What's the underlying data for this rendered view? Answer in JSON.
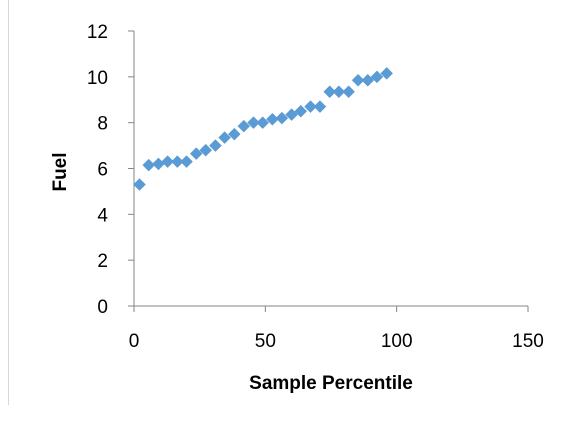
{
  "chart_data": {
    "type": "scatter",
    "title": "",
    "xlabel": "Sample Percentile",
    "ylabel": "Fuel",
    "xlim": [
      0,
      150
    ],
    "ylim": [
      0,
      12
    ],
    "xticks": [
      "0",
      "50",
      "100",
      "150"
    ],
    "yticks": [
      "0",
      "2",
      "4",
      "6",
      "8",
      "10",
      "12"
    ],
    "grid": false,
    "legend": "none",
    "marker": "diamond",
    "color": "#5B9BD5",
    "points": [
      {
        "x": 2.1,
        "y": 5.3
      },
      {
        "x": 5.6,
        "y": 6.15
      },
      {
        "x": 9.3,
        "y": 6.2
      },
      {
        "x": 12.8,
        "y": 6.3
      },
      {
        "x": 16.5,
        "y": 6.3
      },
      {
        "x": 20.0,
        "y": 6.3
      },
      {
        "x": 23.7,
        "y": 6.65
      },
      {
        "x": 27.3,
        "y": 6.8
      },
      {
        "x": 31.0,
        "y": 7.0
      },
      {
        "x": 34.5,
        "y": 7.35
      },
      {
        "x": 38.2,
        "y": 7.5
      },
      {
        "x": 41.8,
        "y": 7.85
      },
      {
        "x": 45.5,
        "y": 8.0
      },
      {
        "x": 49.0,
        "y": 8.0
      },
      {
        "x": 52.7,
        "y": 8.15
      },
      {
        "x": 56.3,
        "y": 8.2
      },
      {
        "x": 60.0,
        "y": 8.35
      },
      {
        "x": 63.5,
        "y": 8.5
      },
      {
        "x": 67.2,
        "y": 8.7
      },
      {
        "x": 70.8,
        "y": 8.7
      },
      {
        "x": 74.5,
        "y": 9.35
      },
      {
        "x": 78.0,
        "y": 9.35
      },
      {
        "x": 81.7,
        "y": 9.35
      },
      {
        "x": 85.3,
        "y": 9.85
      },
      {
        "x": 89.0,
        "y": 9.85
      },
      {
        "x": 92.5,
        "y": 10.0
      },
      {
        "x": 96.2,
        "y": 10.15
      }
    ]
  }
}
